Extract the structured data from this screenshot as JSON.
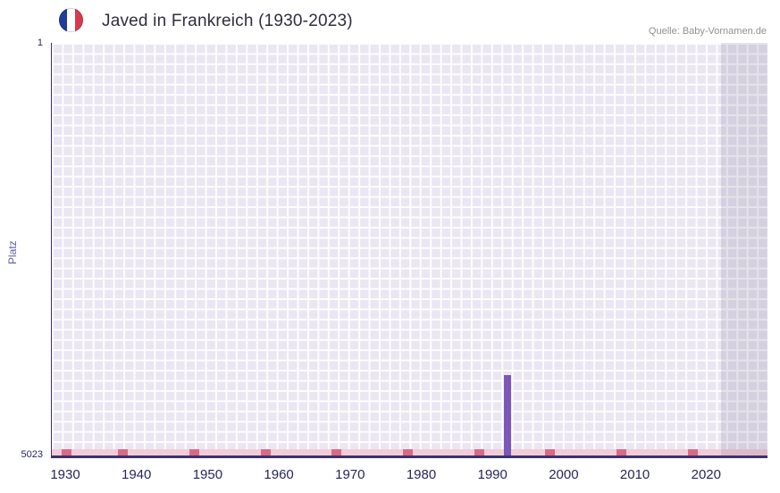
{
  "header": {
    "title": "Javed in Frankreich (1930-2023)",
    "source": "Quelle: Baby-Vornamen.de",
    "flag_icon": "french-flag-icon"
  },
  "chart_data": {
    "type": "bar",
    "title": "Javed in Frankreich (1930-2023)",
    "xlabel": "",
    "ylabel": "Platz",
    "grid": true,
    "legend_position": "none",
    "y_axis": {
      "top_label": "1",
      "bottom_label": "5023",
      "top_value": 1,
      "bottom_value": 5023,
      "inverted": true
    },
    "x_axis": {
      "ticks": [
        1930,
        1940,
        1950,
        1960,
        1970,
        1980,
        1990,
        2000,
        2010,
        2020
      ],
      "plot_start_year": 1928,
      "plot_end_year": 2030
    },
    "series": [
      {
        "name": "Platz",
        "points": [
          {
            "year": 1992,
            "rank": 4040
          }
        ]
      }
    ],
    "bottom_marker_years": [
      1930,
      1938,
      1948,
      1958,
      1968,
      1978,
      1988,
      1998,
      2008,
      2018
    ],
    "shaded_region": {
      "from_year": 2022,
      "to_plot_end": true
    }
  },
  "colors": {
    "bar": "#7b57b8",
    "plot_bg": "#eae6f2",
    "grid_line": "#fdfdfe",
    "shade_overlay": "rgba(104,96,128,0.16)",
    "pink_band": "#f3ccd9",
    "pink_marker": "#d96a87",
    "axis_line": "#3a3366",
    "tick_label": "#26265f",
    "title_text": "#2e2e3e",
    "source_text": "#909090",
    "ylabel_text": "#5f5caa",
    "flag_blue": "#1f3d99",
    "flag_white": "#ffffff",
    "flag_red": "#d93a4e"
  }
}
